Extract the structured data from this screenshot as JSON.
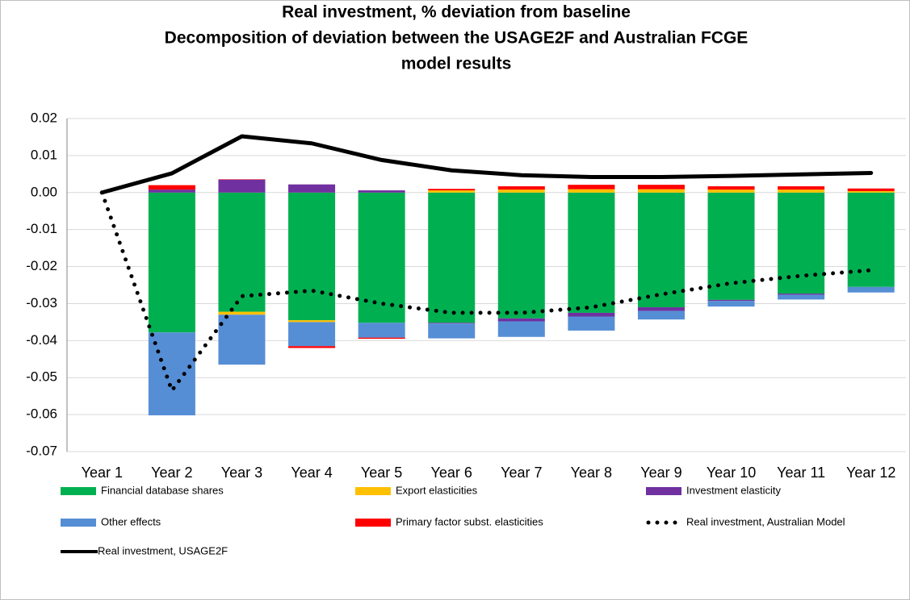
{
  "chart_data": {
    "type": "bar",
    "title_lines": [
      "Real investment, % deviation from baseline",
      "Decomposition of deviation between the USAGE2F and Australian FCGE",
      "model results"
    ],
    "categories": [
      "Year 1",
      "Year 2",
      "Year 3",
      "Year 4",
      "Year 5",
      "Year 6",
      "Year 7",
      "Year 8",
      "Year 9",
      "Year 10",
      "Year 11",
      "Year 12"
    ],
    "stacked": true,
    "series": [
      {
        "name": "Financial database shares",
        "color": "#00b050",
        "values": [
          0,
          -0.0378,
          -0.0322,
          -0.0345,
          -0.0352,
          -0.0352,
          -0.034,
          -0.0325,
          -0.031,
          -0.029,
          -0.0273,
          -0.0255
        ]
      },
      {
        "name": "Export elasticities",
        "color": "#ffc000",
        "values": [
          0,
          0,
          -0.0008,
          -0.0005,
          0,
          0.0006,
          0.0008,
          0.0009,
          0.0009,
          0.0008,
          0.0008,
          0.0004
        ]
      },
      {
        "name": "Investment elasticity",
        "color": "#7030a0",
        "values": [
          0,
          0.0008,
          0.0035,
          0.0022,
          0.0006,
          -0.0002,
          -0.0008,
          -0.001,
          -0.001,
          -0.0003,
          -0.0003,
          0
        ]
      },
      {
        "name": "Other effects",
        "color": "#558ed5",
        "values": [
          0,
          -0.0224,
          -0.0135,
          -0.0065,
          -0.004,
          -0.004,
          -0.0042,
          -0.0038,
          -0.0023,
          -0.0015,
          -0.0013,
          -0.0015
        ]
      },
      {
        "name": "Primary factor subst. elasticities",
        "color": "#ff0000",
        "values": [
          0,
          0.0012,
          0.0001,
          -0.0005,
          -0.0003,
          0.0004,
          0.0009,
          0.0012,
          0.0012,
          0.0009,
          0.0009,
          0.0007
        ]
      },
      {
        "name": "Real investment, Australian Model",
        "type": "line",
        "dash": "dotted",
        "color": "#000000",
        "values": [
          0,
          -0.0535,
          -0.028,
          -0.0265,
          -0.03,
          -0.0325,
          -0.0325,
          -0.031,
          -0.0275,
          -0.0245,
          -0.0225,
          -0.021
        ]
      },
      {
        "name": "Real investment, USAGE2F",
        "type": "line",
        "dash": "solid",
        "color": "#000000",
        "values": [
          0,
          0.0052,
          0.0152,
          0.0133,
          0.0088,
          0.006,
          0.0047,
          0.0042,
          0.0042,
          0.0045,
          0.0049,
          0.0053
        ]
      }
    ],
    "ylim": [
      -0.07,
      0.02
    ],
    "yticks": [
      0.02,
      0.01,
      {
        "value": 0,
        "label": "0.00"
      },
      -0.01,
      -0.02,
      -0.03,
      -0.04,
      -0.05,
      -0.06,
      -0.07
    ],
    "grid": true,
    "legend": "bottom"
  }
}
